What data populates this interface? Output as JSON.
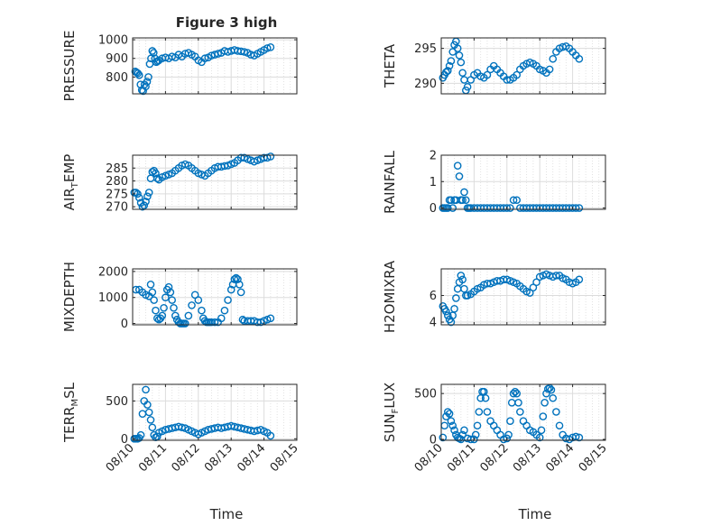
{
  "figure": {
    "title": "Figure 3 high",
    "xlabel": "Time",
    "x_tick_labels": [
      "08/10",
      "08/11",
      "08/12",
      "08/13",
      "08/14",
      "08/15"
    ]
  },
  "colors": {
    "marker": "#0072BD",
    "axis": "#262626",
    "grid": "#dcdcdc",
    "background": "#ffffff"
  },
  "chart_data": [
    {
      "type": "scatter",
      "panel": "PRESSURE",
      "ylabel": "PRESSURE",
      "xlim": [
        0,
        5
      ],
      "ylim": [
        710,
        1010
      ],
      "yticks": [
        800,
        900,
        1000
      ],
      "grid": true,
      "x": [
        0.08,
        0.12,
        0.16,
        0.2,
        0.24,
        0.28,
        0.32,
        0.36,
        0.4,
        0.44,
        0.48,
        0.52,
        0.56,
        0.6,
        0.64,
        0.68,
        0.72,
        0.76,
        0.8,
        0.9,
        1.0,
        1.1,
        1.2,
        1.3,
        1.4,
        1.5,
        1.6,
        1.7,
        1.8,
        1.9,
        2.0,
        2.1,
        2.2,
        2.3,
        2.4,
        2.5,
        2.6,
        2.7,
        2.8,
        2.9,
        3.0,
        3.1,
        3.2,
        3.3,
        3.4,
        3.5,
        3.6,
        3.7,
        3.8,
        3.9,
        4.0,
        4.1,
        4.2
      ],
      "y": [
        830,
        825,
        820,
        810,
        760,
        730,
        725,
        760,
        750,
        775,
        800,
        870,
        900,
        940,
        930,
        900,
        880,
        885,
        890,
        900,
        905,
        900,
        910,
        905,
        920,
        910,
        925,
        930,
        920,
        910,
        890,
        880,
        900,
        905,
        915,
        920,
        925,
        930,
        940,
        935,
        940,
        945,
        940,
        938,
        935,
        930,
        920,
        915,
        925,
        935,
        945,
        955,
        960
      ]
    },
    {
      "type": "scatter",
      "panel": "THETA",
      "ylabel": "THETA",
      "xlim": [
        0,
        5
      ],
      "ylim": [
        288.5,
        296.5
      ],
      "yticks": [
        290,
        295
      ],
      "grid": true,
      "x": [
        0.05,
        0.1,
        0.15,
        0.2,
        0.25,
        0.3,
        0.35,
        0.4,
        0.45,
        0.5,
        0.55,
        0.6,
        0.65,
        0.7,
        0.75,
        0.8,
        0.9,
        1.0,
        1.1,
        1.2,
        1.3,
        1.4,
        1.5,
        1.6,
        1.7,
        1.8,
        1.9,
        2.0,
        2.1,
        2.2,
        2.3,
        2.4,
        2.5,
        2.6,
        2.7,
        2.8,
        2.9,
        3.0,
        3.1,
        3.2,
        3.3,
        3.4,
        3.5,
        3.6,
        3.7,
        3.8,
        3.9,
        4.0,
        4.1,
        4.2
      ],
      "y": [
        290.8,
        291.2,
        291.6,
        291.8,
        292.5,
        293.2,
        294.5,
        295.5,
        296,
        295,
        294,
        293,
        291.5,
        290.5,
        289,
        289.5,
        290.5,
        291.2,
        291.5,
        291,
        290.8,
        291.2,
        292,
        292.5,
        292,
        291.5,
        291,
        290.5,
        290.5,
        290.8,
        291.2,
        292,
        292.5,
        292.8,
        293,
        292.8,
        292.5,
        292,
        291.8,
        291.5,
        292,
        293.5,
        294.5,
        295,
        295.2,
        295.3,
        295,
        294.5,
        294,
        293.5
      ]
    },
    {
      "type": "scatter",
      "panel": "AIR_TEMP",
      "ylabel": "AIR_TEMP",
      "xlim": [
        0,
        5
      ],
      "ylim": [
        269,
        290
      ],
      "yticks": [
        270,
        275,
        280,
        285
      ],
      "grid": true,
      "x": [
        0.05,
        0.1,
        0.15,
        0.2,
        0.25,
        0.3,
        0.35,
        0.4,
        0.45,
        0.5,
        0.55,
        0.6,
        0.65,
        0.7,
        0.75,
        0.8,
        0.9,
        1.0,
        1.1,
        1.2,
        1.3,
        1.4,
        1.5,
        1.6,
        1.7,
        1.8,
        1.9,
        2.0,
        2.1,
        2.2,
        2.3,
        2.4,
        2.5,
        2.6,
        2.7,
        2.8,
        2.9,
        3.0,
        3.1,
        3.2,
        3.3,
        3.4,
        3.5,
        3.6,
        3.7,
        3.8,
        3.9,
        4.0,
        4.1,
        4.2
      ],
      "y": [
        275.5,
        275.5,
        275,
        273.5,
        271.5,
        270,
        270.5,
        272,
        274,
        275.5,
        281,
        283.5,
        284,
        283,
        281,
        280.5,
        281.5,
        282,
        282.5,
        283,
        284,
        285,
        286,
        286.5,
        286,
        285,
        284,
        283,
        282.5,
        282,
        283,
        284,
        285,
        285.5,
        285.5,
        285.8,
        286,
        286.5,
        287,
        288,
        289,
        289,
        288.5,
        288,
        287.5,
        288,
        288.5,
        289,
        289,
        289.5
      ]
    },
    {
      "type": "scatter",
      "panel": "RAINFALL",
      "ylabel": "RAINFALL",
      "xlim": [
        0,
        5
      ],
      "ylim": [
        -0.05,
        2
      ],
      "yticks": [
        0,
        1,
        2
      ],
      "grid": true,
      "x": [
        0.05,
        0.1,
        0.15,
        0.2,
        0.25,
        0.3,
        0.35,
        0.4,
        0.45,
        0.5,
        0.55,
        0.6,
        0.65,
        0.7,
        0.75,
        0.8,
        0.85,
        0.9,
        1.0,
        1.1,
        1.2,
        1.3,
        1.4,
        1.5,
        1.6,
        1.7,
        1.8,
        1.9,
        2.0,
        2.1,
        2.2,
        2.3,
        2.4,
        2.5,
        2.6,
        2.7,
        2.8,
        2.9,
        3.0,
        3.1,
        3.2,
        3.3,
        3.4,
        3.5,
        3.6,
        3.7,
        3.8,
        3.9,
        4.0,
        4.1,
        4.2
      ],
      "y": [
        0,
        0,
        0,
        0,
        0.3,
        0.3,
        0,
        0.3,
        0.3,
        1.6,
        1.2,
        0.3,
        0.3,
        0.6,
        0.3,
        0,
        0,
        0,
        0,
        0,
        0,
        0,
        0,
        0,
        0,
        0,
        0,
        0,
        0,
        0,
        0.3,
        0.3,
        0,
        0,
        0,
        0,
        0,
        0,
        0,
        0,
        0,
        0,
        0,
        0,
        0,
        0,
        0,
        0,
        0,
        0,
        0
      ]
    },
    {
      "type": "scatter",
      "panel": "MIXDEPTH",
      "ylabel": "MIXDEPTH",
      "xlim": [
        0,
        5
      ],
      "ylim": [
        -50,
        2100
      ],
      "yticks": [
        0,
        1000,
        2000
      ],
      "grid": true,
      "x": [
        0.1,
        0.2,
        0.3,
        0.4,
        0.5,
        0.55,
        0.6,
        0.65,
        0.7,
        0.75,
        0.8,
        0.85,
        0.9,
        0.95,
        1.0,
        1.05,
        1.1,
        1.15,
        1.2,
        1.25,
        1.3,
        1.35,
        1.4,
        1.45,
        1.5,
        1.55,
        1.6,
        1.7,
        1.8,
        1.9,
        2.0,
        2.1,
        2.15,
        2.2,
        2.25,
        2.3,
        2.35,
        2.4,
        2.5,
        2.6,
        2.7,
        2.8,
        2.9,
        3.0,
        3.05,
        3.1,
        3.15,
        3.2,
        3.25,
        3.3,
        3.35,
        3.4,
        3.5,
        3.6,
        3.7,
        3.8,
        3.9,
        4.0,
        4.1,
        4.2
      ],
      "y": [
        1300,
        1300,
        1200,
        1100,
        1050,
        1500,
        1200,
        900,
        500,
        200,
        150,
        200,
        300,
        600,
        1000,
        1300,
        1400,
        1200,
        900,
        600,
        300,
        150,
        50,
        0,
        0,
        0,
        0,
        300,
        700,
        1100,
        900,
        500,
        200,
        100,
        50,
        50,
        50,
        50,
        50,
        50,
        200,
        500,
        900,
        1300,
        1500,
        1700,
        1750,
        1700,
        1500,
        1200,
        150,
        100,
        100,
        100,
        100,
        50,
        50,
        100,
        150,
        200
      ]
    },
    {
      "type": "scatter",
      "panel": "H2OMIXRA",
      "ylabel": "H2OMIXRA",
      "xlim": [
        0,
        5
      ],
      "ylim": [
        3.8,
        8.0
      ],
      "yticks": [
        4,
        6
      ],
      "grid": true,
      "x": [
        0.05,
        0.1,
        0.15,
        0.2,
        0.25,
        0.3,
        0.35,
        0.4,
        0.45,
        0.5,
        0.55,
        0.6,
        0.65,
        0.7,
        0.75,
        0.8,
        0.9,
        1.0,
        1.1,
        1.2,
        1.3,
        1.4,
        1.5,
        1.6,
        1.7,
        1.8,
        1.9,
        2.0,
        2.1,
        2.2,
        2.3,
        2.4,
        2.5,
        2.6,
        2.7,
        2.8,
        2.9,
        3.0,
        3.1,
        3.2,
        3.3,
        3.4,
        3.5,
        3.6,
        3.7,
        3.8,
        3.9,
        4.0,
        4.1,
        4.2
      ],
      "y": [
        5.2,
        5.0,
        4.8,
        4.5,
        4.2,
        4.0,
        4.5,
        5.0,
        5.8,
        6.5,
        7.0,
        7.5,
        7.2,
        6.5,
        6.0,
        6.0,
        6.1,
        6.3,
        6.5,
        6.6,
        6.8,
        6.9,
        6.9,
        7.0,
        7.1,
        7.1,
        7.2,
        7.2,
        7.1,
        7.0,
        6.9,
        6.7,
        6.5,
        6.3,
        6.2,
        6.6,
        7.0,
        7.4,
        7.5,
        7.6,
        7.5,
        7.4,
        7.5,
        7.5,
        7.3,
        7.2,
        7.0,
        6.9,
        7.0,
        7.2
      ]
    },
    {
      "type": "scatter",
      "panel": "TERR_MSL",
      "ylabel": "TERR_MSL",
      "xlim": [
        0,
        5
      ],
      "ylim": [
        -20,
        720
      ],
      "yticks": [
        0,
        500
      ],
      "grid": true,
      "x": [
        0.05,
        0.1,
        0.15,
        0.2,
        0.25,
        0.3,
        0.35,
        0.4,
        0.45,
        0.5,
        0.55,
        0.6,
        0.65,
        0.7,
        0.75,
        0.8,
        0.9,
        1.0,
        1.1,
        1.2,
        1.3,
        1.4,
        1.5,
        1.6,
        1.7,
        1.8,
        1.9,
        2.0,
        2.1,
        2.2,
        2.3,
        2.4,
        2.5,
        2.6,
        2.7,
        2.8,
        2.9,
        3.0,
        3.1,
        3.2,
        3.3,
        3.4,
        3.5,
        3.6,
        3.7,
        3.8,
        3.9,
        4.0,
        4.1,
        4.2
      ],
      "y": [
        0,
        0,
        0,
        10,
        50,
        330,
        500,
        650,
        450,
        350,
        250,
        150,
        50,
        20,
        30,
        80,
        100,
        120,
        130,
        140,
        150,
        160,
        150,
        140,
        120,
        100,
        80,
        60,
        80,
        100,
        120,
        130,
        140,
        150,
        140,
        150,
        160,
        170,
        160,
        150,
        140,
        130,
        120,
        110,
        100,
        110,
        120,
        100,
        80,
        40
      ]
    },
    {
      "type": "scatter",
      "panel": "SUN_FLUX",
      "ylabel": "SUN_FLUX",
      "xlim": [
        0,
        5
      ],
      "ylim": [
        -10,
        600
      ],
      "yticks": [
        0,
        500
      ],
      "grid": true,
      "x": [
        0.05,
        0.1,
        0.15,
        0.2,
        0.25,
        0.3,
        0.35,
        0.4,
        0.45,
        0.5,
        0.55,
        0.6,
        0.65,
        0.7,
        0.8,
        0.9,
        1.0,
        1.05,
        1.1,
        1.15,
        1.2,
        1.25,
        1.3,
        1.35,
        1.4,
        1.5,
        1.6,
        1.7,
        1.8,
        1.9,
        2.0,
        2.05,
        2.1,
        2.15,
        2.2,
        2.25,
        2.3,
        2.35,
        2.4,
        2.5,
        2.6,
        2.7,
        2.8,
        2.9,
        3.0,
        3.05,
        3.1,
        3.15,
        3.2,
        3.25,
        3.3,
        3.35,
        3.4,
        3.5,
        3.6,
        3.7,
        3.8,
        3.9,
        4.0,
        4.1,
        4.2
      ],
      "y": [
        20,
        150,
        250,
        300,
        280,
        200,
        150,
        100,
        50,
        20,
        10,
        0,
        50,
        100,
        10,
        0,
        0,
        50,
        150,
        300,
        450,
        520,
        520,
        450,
        300,
        200,
        150,
        100,
        50,
        0,
        10,
        50,
        200,
        400,
        500,
        520,
        500,
        400,
        300,
        200,
        150,
        100,
        80,
        50,
        20,
        100,
        250,
        400,
        500,
        550,
        560,
        540,
        450,
        300,
        150,
        50,
        10,
        0,
        20,
        30,
        20
      ]
    }
  ]
}
